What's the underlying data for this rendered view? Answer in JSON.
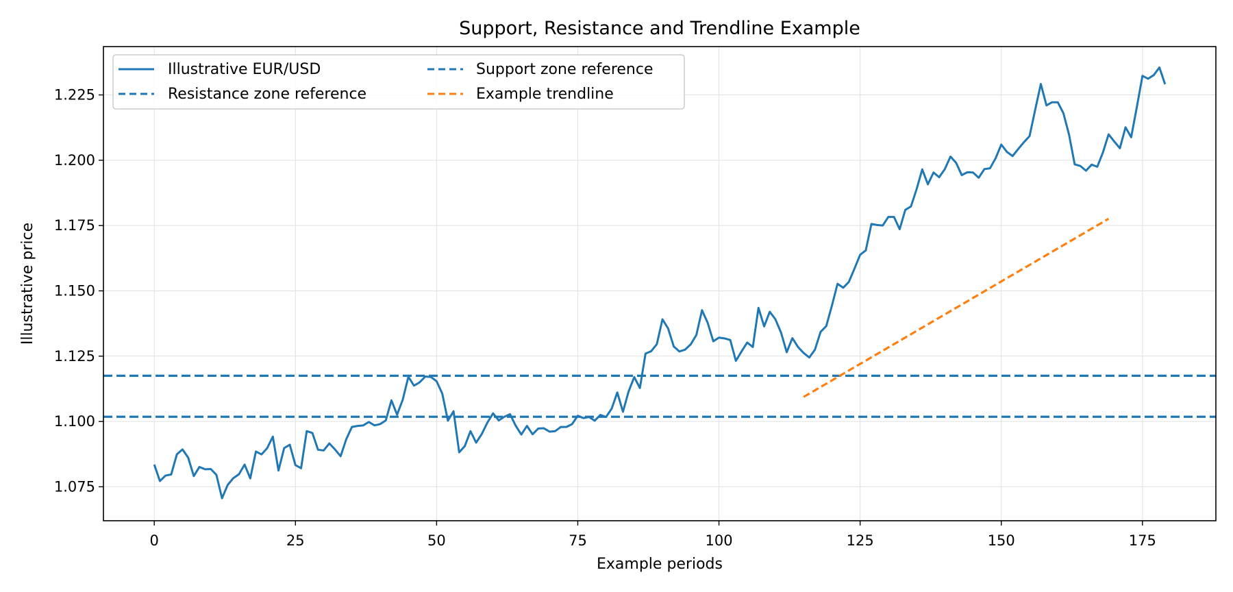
{
  "chart_data": {
    "type": "line",
    "title": "Support, Resistance and Trendline Example",
    "xlabel": "Example periods",
    "ylabel": "Illustrative price",
    "xlim": [
      -9,
      188
    ],
    "ylim": [
      1.062,
      1.2435
    ],
    "xticks": [
      0,
      25,
      50,
      75,
      100,
      125,
      150,
      175
    ],
    "xtick_labels": [
      "0",
      "25",
      "50",
      "75",
      "100",
      "125",
      "150",
      "175"
    ],
    "yticks": [
      1.075,
      1.1,
      1.125,
      1.15,
      1.175,
      1.2,
      1.225
    ],
    "ytick_labels": [
      "1.075",
      "1.100",
      "1.125",
      "1.150",
      "1.175",
      "1.200",
      "1.225"
    ],
    "grid": true,
    "legend": {
      "location": "upper-left",
      "columns": 2,
      "entries": [
        "Illustrative EUR/USD",
        "Resistance zone reference",
        "Support zone reference",
        "Example trendline"
      ]
    },
    "colors": {
      "price": "#1f77b4",
      "zones": "#1f77b4",
      "trendline": "#ff7f0e",
      "grid": "#e0e0e0"
    },
    "series": [
      {
        "name": "Illustrative EUR/USD",
        "style": "solid",
        "y": [
          1.0835,
          1.0772,
          1.0793,
          1.0797,
          1.0874,
          1.0893,
          1.0862,
          1.0791,
          1.0826,
          1.0817,
          1.0818,
          1.0796,
          1.0706,
          1.0757,
          1.0783,
          1.0798,
          1.0835,
          1.0782,
          1.0885,
          1.0874,
          1.0898,
          1.0942,
          1.0812,
          1.0898,
          1.0911,
          1.0833,
          1.0821,
          1.0963,
          1.0956,
          1.0892,
          1.0889,
          1.0916,
          1.0893,
          1.0867,
          1.0932,
          1.0979,
          1.0983,
          1.0985,
          1.0998,
          1.0985,
          1.099,
          1.1004,
          1.1081,
          1.1026,
          1.1083,
          1.1171,
          1.1137,
          1.115,
          1.1172,
          1.117,
          1.1154,
          1.1107,
          1.1003,
          1.1039,
          1.0882,
          1.0906,
          1.0963,
          1.0919,
          1.0952,
          1.0996,
          1.1031,
          1.1004,
          1.1018,
          1.1028,
          1.0984,
          1.095,
          1.0983,
          1.0951,
          1.0973,
          1.0974,
          1.0961,
          1.0963,
          1.0979,
          1.0979,
          1.099,
          1.1022,
          1.1013,
          1.1017,
          1.1003,
          1.1025,
          1.1017,
          1.1049,
          1.1111,
          1.1037,
          1.1115,
          1.117,
          1.1128,
          1.126,
          1.1269,
          1.1296,
          1.1391,
          1.1356,
          1.1287,
          1.1268,
          1.1275,
          1.1295,
          1.1331,
          1.1426,
          1.1378,
          1.1307,
          1.1321,
          1.1318,
          1.1312,
          1.1232,
          1.1268,
          1.1302,
          1.1285,
          1.1435,
          1.1364,
          1.142,
          1.1391,
          1.134,
          1.1265,
          1.1319,
          1.1285,
          1.1262,
          1.1245,
          1.1275,
          1.1343,
          1.1365,
          1.1443,
          1.1527,
          1.1512,
          1.1534,
          1.1585,
          1.1638,
          1.1655,
          1.1756,
          1.1752,
          1.175,
          1.1783,
          1.1783,
          1.1736,
          1.181,
          1.1823,
          1.1889,
          1.1965,
          1.1908,
          1.1953,
          1.1935,
          1.1966,
          1.2014,
          1.199,
          1.1943,
          1.1954,
          1.1953,
          1.1933,
          1.1966,
          1.1969,
          1.2008,
          1.206,
          1.2032,
          1.2016,
          1.2043,
          1.2069,
          1.2092,
          1.2193,
          1.2292,
          1.221,
          1.2222,
          1.2222,
          1.218,
          1.2098,
          1.1984,
          1.1978,
          1.196,
          1.1983,
          1.1975,
          1.203,
          1.2099,
          1.2072,
          1.2046,
          1.2126,
          1.2088,
          1.2203,
          1.2323,
          1.2312,
          1.2326,
          1.2355,
          1.2291
        ]
      },
      {
        "name": "Resistance zone reference",
        "style": "dashed",
        "y_constant": 1.1175
      },
      {
        "name": "Support zone reference",
        "style": "dashed",
        "y_constant": 1.1018
      },
      {
        "name": "Example trendline",
        "style": "dashed",
        "x": [
          115,
          169
        ],
        "y": [
          1.1094,
          1.1776
        ]
      }
    ]
  }
}
